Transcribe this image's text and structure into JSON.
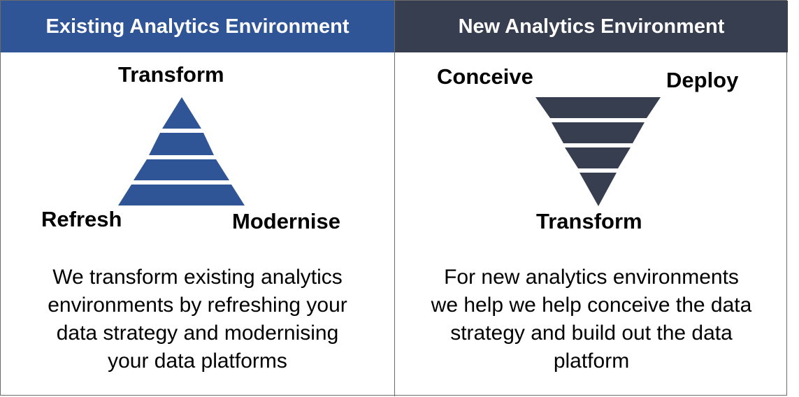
{
  "left_panel": {
    "header": "Existing Analytics Environment",
    "labels": {
      "top": "Transform",
      "bottom_left": "Refresh",
      "bottom_right": "Modernise"
    },
    "description_lines": [
      "We transform existing analytics",
      "environments by refreshing your",
      "data strategy and modernising",
      "your data platforms"
    ],
    "color": "#2f5597"
  },
  "right_panel": {
    "header": "New Analytics Environment",
    "labels": {
      "top_left": "Conceive",
      "top_right": "Deploy",
      "bottom": "Transform"
    },
    "description_lines": [
      "For new analytics environments",
      "we help we help conceive the data",
      "strategy and build out the data",
      "platform"
    ],
    "color": "#363e50"
  }
}
